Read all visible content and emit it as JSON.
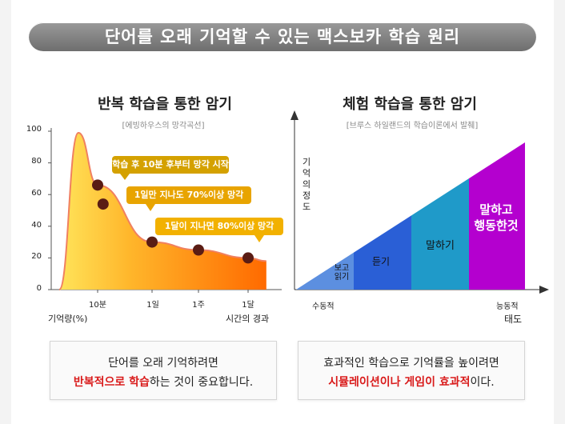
{
  "banner": {
    "title": "단어를 오래 기억할 수 있는 맥스보카 학습 원리"
  },
  "left": {
    "title": "반복 학습을 통한 암기",
    "subtitle": "[에빙하우스의 망각곡선]",
    "ylabel": "기억량(%)",
    "xlabel": "시간의 경과",
    "callouts": [
      "학습 후 10분 후부터 망각 시작",
      "1일만 지나도 70%이상 망각",
      "1달이 지나면 80%이상 망각"
    ],
    "card_line1": "단어를 오래 기억하려면",
    "card_hl": "반복적으로 학습",
    "card_rest": "하는 것이 중요합니다."
  },
  "right": {
    "title": "체험 학습을 통한 암기",
    "subtitle": "[브루스 하일랜드의 학습이론에서 발췌]",
    "ylabel": "기억의 정도",
    "x_start": "수동적",
    "x_end": "능동적",
    "x_unit": "태도",
    "card_line1": "효과적인 학습으로 기억률을 높이려면",
    "card_hl": "시뮬레이션이나 게임이 효과적",
    "card_rest": "이다."
  },
  "chart_data": [
    {
      "type": "area",
      "title": "반복 학습을 통한 암기",
      "subtitle": "[에빙하우스의 망각곡선]",
      "ylabel": "기억량(%)",
      "xlabel": "시간의 경과",
      "ylim": [
        0,
        100
      ],
      "yticks": [
        0,
        20,
        40,
        60,
        80,
        100
      ],
      "xticks": [
        "10분",
        "1일",
        "1주",
        "1달"
      ],
      "curve": [
        {
          "x": 0,
          "y": 0
        },
        {
          "x": 0.5,
          "y": 99
        },
        {
          "x": 1,
          "y": 66
        },
        {
          "x": 2,
          "y": 30
        },
        {
          "x": 3,
          "y": 25
        },
        {
          "x": 4,
          "y": 20
        },
        {
          "x": 4.6,
          "y": 18
        }
      ],
      "markers": [
        {
          "x": 1,
          "y": 66
        },
        {
          "x": 1.1,
          "y": 54
        },
        {
          "x": 2,
          "y": 30
        },
        {
          "x": 3,
          "y": 25
        },
        {
          "x": 4,
          "y": 20
        }
      ],
      "annotations": [
        "학습 후 10분 후부터 망각 시작",
        "1일만 지나도 70%이상 망각",
        "1달이 지나면 80%이상 망각"
      ],
      "colors": {
        "top": "#ffd23a",
        "bottom": "#ff6a00",
        "peak": "#f07a4a",
        "marker": "#5a1c14"
      }
    },
    {
      "type": "area",
      "title": "체험 학습을 통한 암기",
      "subtitle": "[브루스 하일랜드의 학습이론에서 발췌]",
      "ylabel": "기억의 정도",
      "xlabel": "태도",
      "x_range": [
        "수동적",
        "능동적"
      ],
      "shape": "rising triangle",
      "segments": [
        {
          "label": "보고 읽기",
          "color": "#5c8fe0"
        },
        {
          "label": "듣기",
          "color": "#2a5fd6"
        },
        {
          "label": "말하기",
          "color": "#1f9ac9"
        },
        {
          "label": "말하고 행동한것",
          "color": "#b400cf"
        }
      ]
    }
  ]
}
